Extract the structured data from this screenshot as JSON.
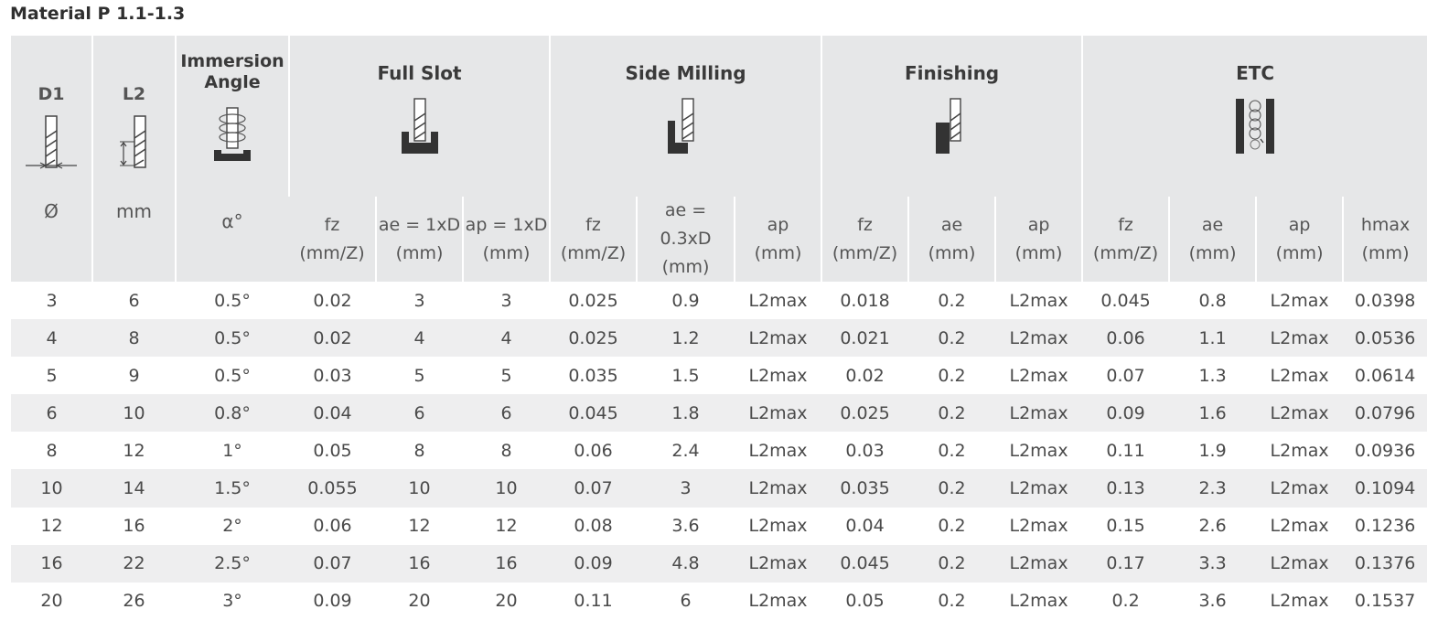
{
  "title": "Material P 1.1-1.3",
  "headers": {
    "d1": {
      "label": "D1",
      "unit": "Ø"
    },
    "l2": {
      "label": "L2",
      "unit": "mm"
    },
    "immersion": {
      "label_line1": "Immersion",
      "label_line2": "Angle",
      "unit": "α°"
    },
    "full_slot": {
      "label": "Full Slot",
      "sub": [
        {
          "l1": "fz",
          "l2": "(mm/Z)"
        },
        {
          "l1": "ae = 1xD",
          "l2": "(mm)"
        },
        {
          "l1": "ap = 1xD",
          "l2": "(mm)"
        }
      ]
    },
    "side_milling": {
      "label": "Side Milling",
      "sub": [
        {
          "l1": "fz",
          "l2": "(mm/Z)"
        },
        {
          "l1": "ae = 0.3xD",
          "l2": "(mm)"
        },
        {
          "l1": "ap",
          "l2": "(mm)"
        }
      ]
    },
    "finishing": {
      "label": "Finishing",
      "sub": [
        {
          "l1": "fz",
          "l2": "(mm/Z)"
        },
        {
          "l1": "ae",
          "l2": "(mm)"
        },
        {
          "l1": "ap",
          "l2": "(mm)"
        }
      ]
    },
    "etc": {
      "label": "ETC",
      "sub": [
        {
          "l1": "fz",
          "l2": "(mm/Z)"
        },
        {
          "l1": "ae",
          "l2": "(mm)"
        },
        {
          "l1": "ap",
          "l2": "(mm)"
        },
        {
          "l1": "hmax",
          "l2": "(mm)"
        }
      ]
    }
  },
  "icons": [
    "d1-diameter-icon",
    "l2-length-icon",
    "immersion-angle-icon",
    "full-slot-icon",
    "side-milling-icon",
    "finishing-icon",
    "helical-etc-icon"
  ],
  "rows": [
    [
      "3",
      "6",
      "0.5°",
      "0.02",
      "3",
      "3",
      "0.025",
      "0.9",
      "L2max",
      "0.018",
      "0.2",
      "L2max",
      "0.045",
      "0.8",
      "L2max",
      "0.0398"
    ],
    [
      "4",
      "8",
      "0.5°",
      "0.02",
      "4",
      "4",
      "0.025",
      "1.2",
      "L2max",
      "0.021",
      "0.2",
      "L2max",
      "0.06",
      "1.1",
      "L2max",
      "0.0536"
    ],
    [
      "5",
      "9",
      "0.5°",
      "0.03",
      "5",
      "5",
      "0.035",
      "1.5",
      "L2max",
      "0.02",
      "0.2",
      "L2max",
      "0.07",
      "1.3",
      "L2max",
      "0.0614"
    ],
    [
      "6",
      "10",
      "0.8°",
      "0.04",
      "6",
      "6",
      "0.045",
      "1.8",
      "L2max",
      "0.025",
      "0.2",
      "L2max",
      "0.09",
      "1.6",
      "L2max",
      "0.0796"
    ],
    [
      "8",
      "12",
      "1°",
      "0.05",
      "8",
      "8",
      "0.06",
      "2.4",
      "L2max",
      "0.03",
      "0.2",
      "L2max",
      "0.11",
      "1.9",
      "L2max",
      "0.0936"
    ],
    [
      "10",
      "14",
      "1.5°",
      "0.055",
      "10",
      "10",
      "0.07",
      "3",
      "L2max",
      "0.035",
      "0.2",
      "L2max",
      "0.13",
      "2.3",
      "L2max",
      "0.1094"
    ],
    [
      "12",
      "16",
      "2°",
      "0.06",
      "12",
      "12",
      "0.08",
      "3.6",
      "L2max",
      "0.04",
      "0.2",
      "L2max",
      "0.15",
      "2.6",
      "L2max",
      "0.1236"
    ],
    [
      "16",
      "22",
      "2.5°",
      "0.07",
      "16",
      "16",
      "0.09",
      "4.8",
      "L2max",
      "0.045",
      "0.2",
      "L2max",
      "0.17",
      "3.3",
      "L2max",
      "0.1376"
    ],
    [
      "20",
      "26",
      "3°",
      "0.09",
      "20",
      "20",
      "0.11",
      "6",
      "L2max",
      "0.05",
      "0.2",
      "L2max",
      "0.2",
      "3.6",
      "L2max",
      "0.1537"
    ]
  ]
}
